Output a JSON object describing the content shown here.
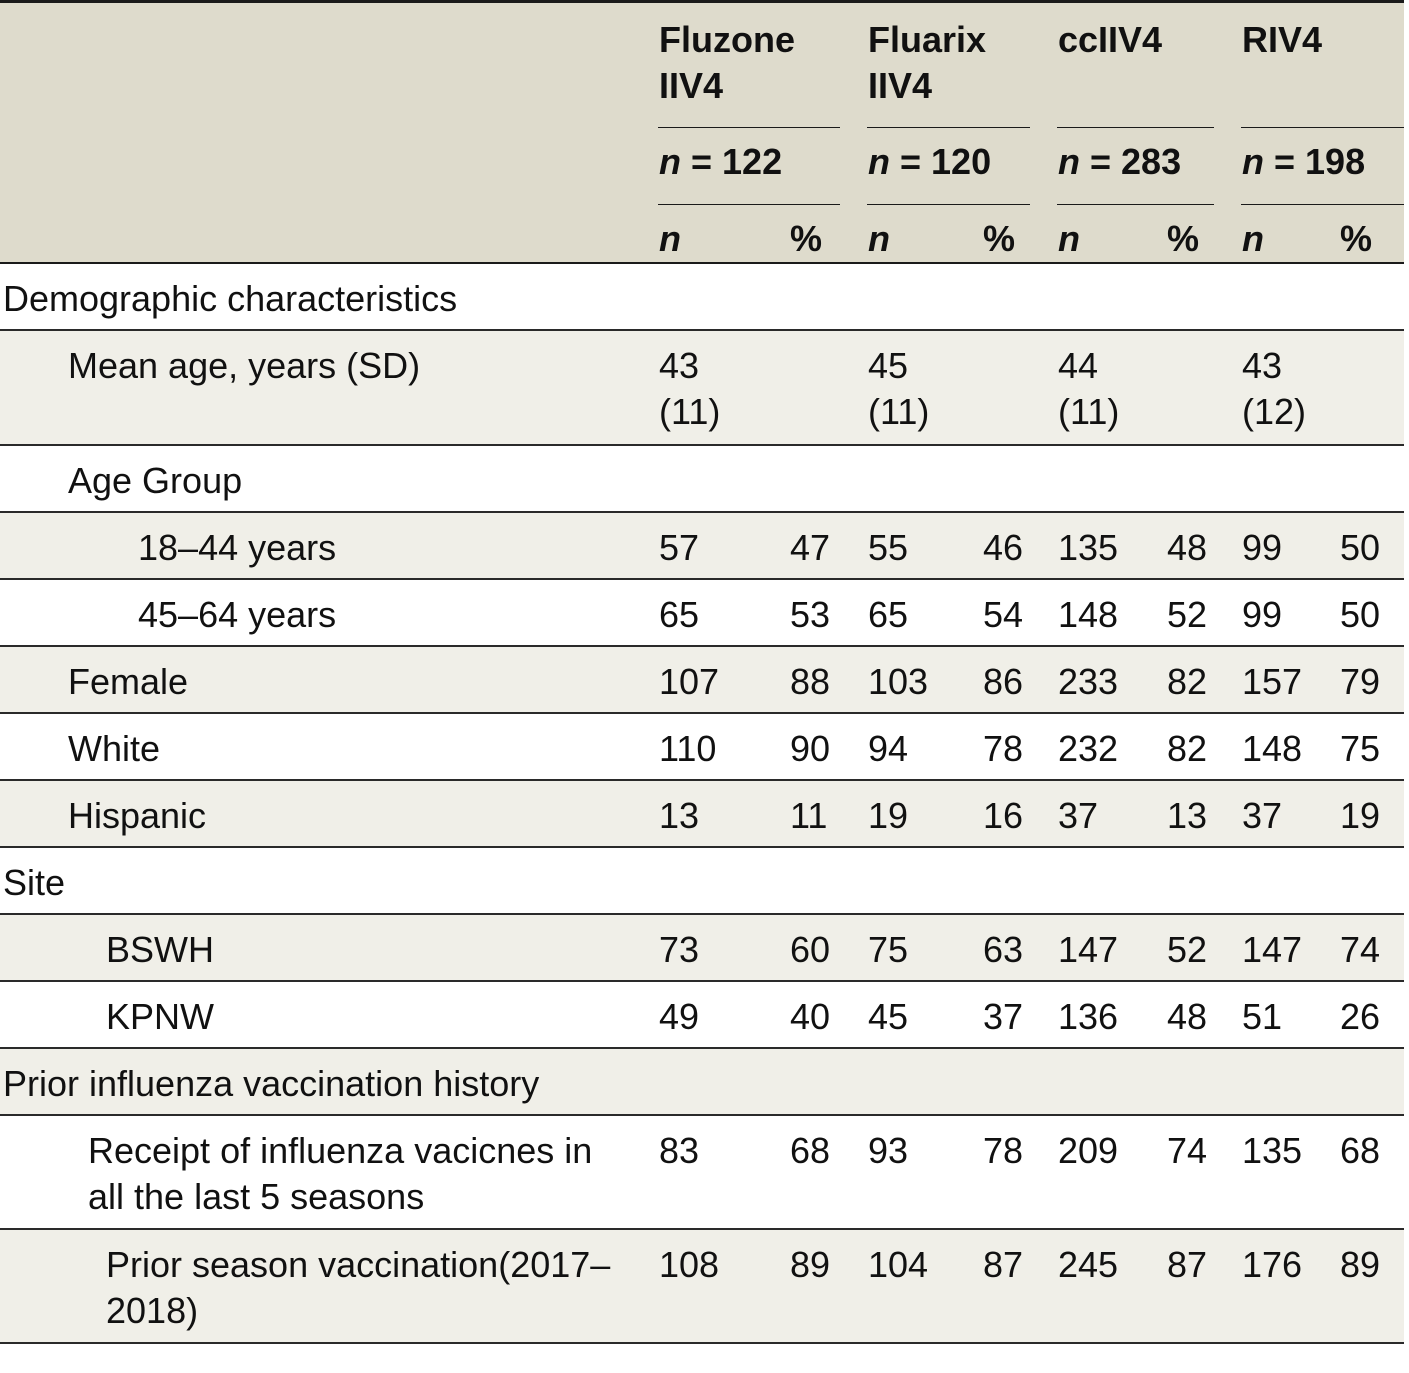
{
  "header": {
    "groups": [
      {
        "name_line1": "Fluzone",
        "name_line2": "IIV4",
        "n_sym": "n",
        "n_rest": " = 122"
      },
      {
        "name_line1": "Fluarix",
        "name_line2": "IIV4",
        "n_sym": "n",
        "n_rest": " = 120"
      },
      {
        "name_line1": "ccIIV4",
        "name_line2": "",
        "n_sym": "n",
        "n_rest": " = 283"
      },
      {
        "name_line1": "RIV4",
        "name_line2": "",
        "n_sym": "n",
        "n_rest": " = 198"
      }
    ],
    "sub_n": "n",
    "sub_pct": "%"
  },
  "rows": [
    {
      "label": "Demographic characteristics",
      "section": true
    },
    {
      "label": "Mean age, years (SD)",
      "mean": [
        {
          "line1": "43",
          "line2": "(11)"
        },
        {
          "line1": "45",
          "line2": "(11)"
        },
        {
          "line1": "44",
          "line2": "(11)"
        },
        {
          "line1": "43",
          "line2": "(12)"
        }
      ]
    },
    {
      "label": "Age Group",
      "section": true
    },
    {
      "label": "18–44 years",
      "values": [
        "57",
        "47",
        "55",
        "46",
        "135",
        "48",
        "99",
        "50"
      ]
    },
    {
      "label": "45–64 years",
      "values": [
        "65",
        "53",
        "65",
        "54",
        "148",
        "52",
        "99",
        "50"
      ]
    },
    {
      "label": "Female",
      "values": [
        "107",
        "88",
        "103",
        "86",
        "233",
        "82",
        "157",
        "79"
      ]
    },
    {
      "label": "White",
      "values": [
        "110",
        "90",
        "94",
        "78",
        "232",
        "82",
        "148",
        "75"
      ]
    },
    {
      "label": "Hispanic",
      "values": [
        "13",
        "11",
        "19",
        "16",
        "37",
        "13",
        "37",
        "19"
      ]
    },
    {
      "label": "Site",
      "section": true
    },
    {
      "label": "BSWH",
      "values": [
        "73",
        "60",
        "75",
        "63",
        "147",
        "52",
        "147",
        "74"
      ]
    },
    {
      "label": "KPNW",
      "values": [
        "49",
        "40",
        "45",
        "37",
        "136",
        "48",
        "51",
        "26"
      ]
    },
    {
      "label": "Prior influenza vaccination history",
      "section": true
    },
    {
      "label": "Receipt of influenza vacicnes in all the last 5 seasons",
      "values": [
        "83",
        "68",
        "93",
        "78",
        "209",
        "74",
        "135",
        "68"
      ]
    },
    {
      "label": "Prior season vaccination(2017–2018)",
      "values": [
        "108",
        "89",
        "104",
        "87",
        "245",
        "87",
        "176",
        "89"
      ]
    }
  ]
}
